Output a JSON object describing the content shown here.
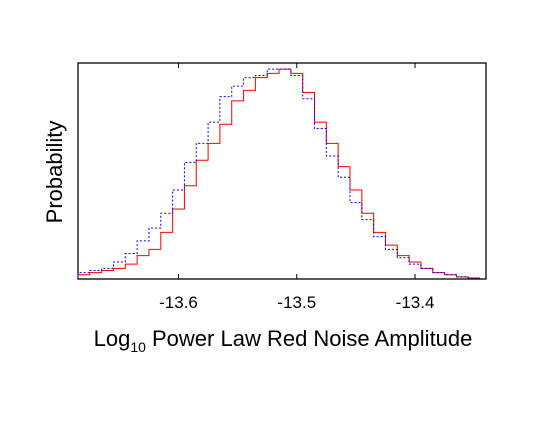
{
  "chart_data": {
    "type": "histogram",
    "xlabel": {
      "main": "Log",
      "sub": "10",
      "rest": " Power Law Red Noise Amplitude"
    },
    "ylabel": "Probability",
    "xlim": [
      -13.685,
      -13.34
    ],
    "ylim": [
      0,
      1.0
    ],
    "x_ticks": [
      -13.6,
      -13.5,
      -13.4
    ],
    "x_tick_labels": [
      "-13.6",
      "-13.5",
      "-13.4"
    ],
    "bin_edges": [
      -13.685,
      -13.675,
      -13.665,
      -13.655,
      -13.645,
      -13.635,
      -13.625,
      -13.615,
      -13.605,
      -13.595,
      -13.585,
      -13.575,
      -13.565,
      -13.555,
      -13.545,
      -13.535,
      -13.525,
      -13.515,
      -13.505,
      -13.495,
      -13.485,
      -13.475,
      -13.465,
      -13.455,
      -13.445,
      -13.435,
      -13.425,
      -13.415,
      -13.405,
      -13.395,
      -13.385,
      -13.375,
      -13.365,
      -13.355,
      -13.345
    ],
    "series": [
      {
        "color": "#ff0000",
        "dash": "solid",
        "values": [
          0.02,
          0.03,
          0.04,
          0.05,
          0.07,
          0.11,
          0.14,
          0.22,
          0.33,
          0.44,
          0.56,
          0.64,
          0.73,
          0.84,
          0.89,
          0.95,
          0.97,
          0.99,
          0.97,
          0.88,
          0.74,
          0.64,
          0.53,
          0.42,
          0.31,
          0.22,
          0.16,
          0.11,
          0.08,
          0.05,
          0.03,
          0.02,
          0.01,
          0.005
        ]
      },
      {
        "color": "#0000ff",
        "dash": "dotted",
        "values": [
          0.03,
          0.04,
          0.05,
          0.08,
          0.12,
          0.18,
          0.24,
          0.31,
          0.42,
          0.55,
          0.64,
          0.74,
          0.86,
          0.91,
          0.95,
          0.96,
          0.99,
          0.99,
          0.96,
          0.85,
          0.71,
          0.58,
          0.48,
          0.36,
          0.28,
          0.2,
          0.14,
          0.1,
          0.07,
          0.05,
          0.03,
          0.02,
          0.01,
          0.005
        ]
      }
    ]
  }
}
